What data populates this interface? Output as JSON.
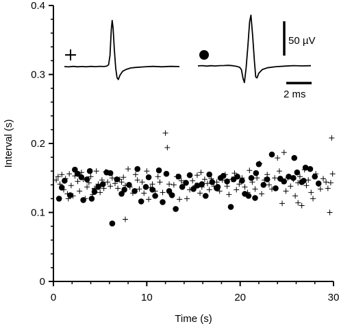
{
  "chart_data": {
    "type": "scatter",
    "xlabel": "Time (s)",
    "ylabel": "Interval (s)",
    "xlim": [
      0,
      30
    ],
    "ylim": [
      0,
      0.4
    ],
    "x_ticks": [
      0,
      10,
      20,
      30
    ],
    "x_tick_labels": [
      "0",
      "10",
      "20",
      "30"
    ],
    "y_ticks": [
      0,
      0.1,
      0.2,
      0.3,
      0.4
    ],
    "y_tick_labels": [
      "0",
      "0.1",
      "0.2",
      "0.3",
      "0.4"
    ],
    "grid": false,
    "series": [
      {
        "marker": "cross",
        "color": "#000000",
        "points": [
          [
            0.3,
            0.147
          ],
          [
            0.5,
            0.152
          ],
          [
            0.7,
            0.141
          ],
          [
            0.9,
            0.155
          ],
          [
            1.1,
            0.133
          ],
          [
            1.3,
            0.149
          ],
          [
            1.5,
            0.127
          ],
          [
            1.7,
            0.156
          ],
          [
            1.9,
            0.139
          ],
          [
            2.1,
            0.124
          ],
          [
            2.3,
            0.153
          ],
          [
            2.6,
            0.145
          ],
          [
            2.8,
            0.131
          ],
          [
            3.0,
            0.158
          ],
          [
            3.2,
            0.148
          ],
          [
            3.4,
            0.12
          ],
          [
            3.6,
            0.137
          ],
          [
            3.8,
            0.143
          ],
          [
            4.0,
            0.152
          ],
          [
            4.2,
            0.126
          ],
          [
            4.4,
            0.134
          ],
          [
            4.6,
            0.16
          ],
          [
            4.8,
            0.141
          ],
          [
            5.0,
            0.129
          ],
          [
            5.2,
            0.147
          ],
          [
            5.4,
            0.135
          ],
          [
            5.6,
            0.159
          ],
          [
            5.8,
            0.144
          ],
          [
            6.1,
            0.138
          ],
          [
            6.3,
            0.15
          ],
          [
            6.6,
            0.142
          ],
          [
            6.9,
            0.135
          ],
          [
            7.1,
            0.148
          ],
          [
            7.3,
            0.144
          ],
          [
            7.5,
            0.151
          ],
          [
            7.7,
            0.139
          ],
          [
            8.0,
            0.163
          ],
          [
            8.2,
            0.137
          ],
          [
            8.5,
            0.128
          ],
          [
            8.8,
            0.155
          ],
          [
            9.0,
            0.147
          ],
          [
            9.2,
            0.134
          ],
          [
            9.5,
            0.144
          ],
          [
            9.7,
            0.128
          ],
          [
            10.0,
            0.16
          ],
          [
            10.2,
            0.119
          ],
          [
            10.4,
            0.136
          ],
          [
            10.6,
            0.141
          ],
          [
            10.9,
            0.131
          ],
          [
            11.2,
            0.152
          ],
          [
            11.4,
            0.144
          ],
          [
            11.7,
            0.129
          ],
          [
            12.0,
            0.215
          ],
          [
            12.2,
            0.194
          ],
          [
            12.4,
            0.141
          ],
          [
            12.6,
            0.126
          ],
          [
            12.9,
            0.14
          ],
          [
            13.2,
            0.152
          ],
          [
            13.5,
            0.119
          ],
          [
            13.7,
            0.146
          ],
          [
            14.0,
            0.143
          ],
          [
            14.3,
            0.12
          ],
          [
            14.6,
            0.133
          ],
          [
            14.9,
            0.146
          ],
          [
            15.2,
            0.139
          ],
          [
            15.4,
            0.154
          ],
          [
            15.7,
            0.128
          ],
          [
            15.9,
            0.137
          ],
          [
            16.2,
            0.148
          ],
          [
            16.5,
            0.142
          ],
          [
            16.7,
            0.133
          ],
          [
            16.9,
            0.149
          ],
          [
            17.2,
            0.138
          ],
          [
            17.5,
            0.144
          ],
          [
            17.8,
            0.131
          ],
          [
            18.1,
            0.147
          ],
          [
            18.4,
            0.155
          ],
          [
            18.6,
            0.138
          ],
          [
            18.8,
            0.126
          ],
          [
            19.1,
            0.148
          ],
          [
            19.4,
            0.157
          ],
          [
            19.6,
            0.133
          ],
          [
            19.9,
            0.141
          ],
          [
            20.2,
            0.15
          ],
          [
            20.5,
            0.137
          ],
          [
            20.8,
            0.129
          ],
          [
            21.0,
            0.161
          ],
          [
            21.3,
            0.144
          ],
          [
            21.6,
            0.134
          ],
          [
            21.8,
            0.15
          ],
          [
            22.1,
            0.171
          ],
          [
            22.3,
            0.127
          ],
          [
            22.6,
            0.147
          ],
          [
            22.9,
            0.155
          ],
          [
            23.1,
            0.14
          ],
          [
            23.4,
            0.134
          ],
          [
            23.7,
            0.15
          ],
          [
            24.0,
            0.179
          ],
          [
            24.2,
            0.16
          ],
          [
            24.5,
            0.145
          ],
          [
            24.7,
            0.187
          ],
          [
            24.9,
            0.131
          ],
          [
            25.1,
            0.15
          ],
          [
            25.4,
            0.138
          ],
          [
            25.7,
            0.148
          ],
          [
            25.9,
            0.124
          ],
          [
            26.2,
            0.143
          ],
          [
            26.4,
            0.152
          ],
          [
            26.6,
            0.11
          ],
          [
            26.9,
            0.162
          ],
          [
            27.1,
            0.139
          ],
          [
            27.3,
            0.147
          ],
          [
            27.6,
            0.129
          ],
          [
            27.8,
            0.12
          ],
          [
            28.1,
            0.156
          ],
          [
            28.4,
            0.141
          ],
          [
            28.6,
            0.134
          ],
          [
            28.9,
            0.149
          ],
          [
            29.2,
            0.144
          ],
          [
            29.4,
            0.135
          ],
          [
            29.6,
            0.1
          ],
          [
            29.8,
            0.208
          ],
          [
            29.9,
            0.156
          ],
          [
            29.7,
            0.143
          ],
          [
            26.2,
            0.114
          ],
          [
            24.5,
            0.113
          ],
          [
            7.7,
            0.09
          ],
          [
            4.4,
            0.135
          ],
          [
            1.6,
            0.12
          ],
          [
            15.8,
            0.158
          ]
        ]
      },
      {
        "marker": "dot",
        "color": "#000000",
        "points": [
          [
            0.6,
            0.12
          ],
          [
            0.9,
            0.136
          ],
          [
            1.2,
            0.146
          ],
          [
            1.8,
            0.125
          ],
          [
            2.3,
            0.162
          ],
          [
            2.6,
            0.156
          ],
          [
            3.0,
            0.151
          ],
          [
            3.2,
            0.118
          ],
          [
            3.6,
            0.148
          ],
          [
            3.9,
            0.16
          ],
          [
            4.1,
            0.12
          ],
          [
            4.4,
            0.13
          ],
          [
            4.8,
            0.137
          ],
          [
            5.3,
            0.141
          ],
          [
            5.7,
            0.158
          ],
          [
            6.1,
            0.157
          ],
          [
            6.3,
            0.084
          ],
          [
            6.8,
            0.148
          ],
          [
            7.3,
            0.127
          ],
          [
            7.6,
            0.133
          ],
          [
            8.1,
            0.14
          ],
          [
            8.7,
            0.131
          ],
          [
            9.0,
            0.163
          ],
          [
            9.4,
            0.116
          ],
          [
            9.9,
            0.137
          ],
          [
            10.2,
            0.151
          ],
          [
            10.6,
            0.133
          ],
          [
            10.9,
            0.124
          ],
          [
            11.3,
            0.161
          ],
          [
            11.7,
            0.115
          ],
          [
            12.1,
            0.156
          ],
          [
            12.4,
            0.131
          ],
          [
            12.7,
            0.125
          ],
          [
            13.1,
            0.105
          ],
          [
            13.4,
            0.152
          ],
          [
            13.8,
            0.137
          ],
          [
            14.2,
            0.143
          ],
          [
            14.6,
            0.154
          ],
          [
            15.0,
            0.134
          ],
          [
            15.4,
            0.139
          ],
          [
            15.9,
            0.141
          ],
          [
            16.3,
            0.124
          ],
          [
            16.7,
            0.155
          ],
          [
            17.0,
            0.144
          ],
          [
            17.5,
            0.135
          ],
          [
            17.9,
            0.15
          ],
          [
            18.2,
            0.153
          ],
          [
            18.6,
            0.145
          ],
          [
            19.0,
            0.108
          ],
          [
            19.3,
            0.148
          ],
          [
            19.7,
            0.152
          ],
          [
            20.2,
            0.146
          ],
          [
            20.5,
            0.127
          ],
          [
            20.9,
            0.124
          ],
          [
            21.2,
            0.15
          ],
          [
            21.7,
            0.157
          ],
          [
            22.0,
            0.17
          ],
          [
            22.5,
            0.14
          ],
          [
            22.9,
            0.148
          ],
          [
            23.4,
            0.184
          ],
          [
            23.8,
            0.135
          ],
          [
            24.3,
            0.149
          ],
          [
            24.7,
            0.145
          ],
          [
            25.2,
            0.152
          ],
          [
            25.7,
            0.15
          ],
          [
            26.1,
            0.158
          ],
          [
            26.6,
            0.144
          ],
          [
            27.0,
            0.165
          ],
          [
            27.5,
            0.163
          ],
          [
            28.0,
            0.152
          ],
          [
            28.4,
            0.142
          ],
          [
            17.6,
            0.137
          ],
          [
            21.6,
            0.121
          ],
          [
            25.8,
            0.179
          ],
          [
            26.8,
            0.146
          ]
        ]
      }
    ],
    "insets": [
      {
        "marker": "cross",
        "trace": [
          [
            0,
            0
          ],
          [
            0.5,
            -0.3
          ],
          [
            1.0,
            0.2
          ],
          [
            1.5,
            -0.2
          ],
          [
            2.0,
            0.1
          ],
          [
            2.5,
            -0.2
          ],
          [
            3.0,
            0.2
          ],
          [
            3.5,
            -0.1
          ],
          [
            4.0,
            0.3
          ],
          [
            4.5,
            0.1
          ],
          [
            4.8,
            0.6
          ],
          [
            5.0,
            2.0
          ],
          [
            5.15,
            12.0
          ],
          [
            5.3,
            40.0
          ],
          [
            5.4,
            50.0
          ],
          [
            5.5,
            42.0
          ],
          [
            5.65,
            18.0
          ],
          [
            5.8,
            -2.0
          ],
          [
            5.95,
            -12.0
          ],
          [
            6.1,
            -14.0
          ],
          [
            6.3,
            -9.0
          ],
          [
            6.6,
            -5.0
          ],
          [
            7.0,
            -3.0
          ],
          [
            7.5,
            -1.5
          ],
          [
            8.0,
            -1.0
          ],
          [
            9.0,
            -0.3
          ],
          [
            10.0,
            0.2
          ],
          [
            11.0,
            -0.2
          ],
          [
            12.0,
            0.2
          ],
          [
            13.0,
            0.0
          ]
        ]
      },
      {
        "marker": "dot",
        "trace": [
          [
            0,
            0
          ],
          [
            0.5,
            0.3
          ],
          [
            1.0,
            -0.2
          ],
          [
            1.5,
            0.2
          ],
          [
            2.0,
            -0.1
          ],
          [
            2.5,
            0.3
          ],
          [
            3.0,
            0.4
          ],
          [
            3.5,
            0.6
          ],
          [
            4.0,
            0.2
          ],
          [
            4.5,
            -0.6
          ],
          [
            4.8,
            -1.5
          ],
          [
            5.0,
            -4.0
          ],
          [
            5.2,
            -14.0
          ],
          [
            5.35,
            -18.0
          ],
          [
            5.55,
            -2.0
          ],
          [
            5.75,
            22.0
          ],
          [
            5.95,
            48.0
          ],
          [
            6.1,
            55.0
          ],
          [
            6.3,
            32.0
          ],
          [
            6.5,
            5.0
          ],
          [
            6.65,
            -12.0
          ],
          [
            6.8,
            -13.0
          ],
          [
            7.0,
            -8.0
          ],
          [
            7.4,
            -4.0
          ],
          [
            8.0,
            -2.0
          ],
          [
            9.0,
            -0.8
          ],
          [
            10.0,
            -0.2
          ],
          [
            11.0,
            0.3
          ],
          [
            12.0,
            0.0
          ],
          [
            13.0,
            0.2
          ]
        ]
      }
    ],
    "scale_bar_voltage_label": "50 µV",
    "scale_bar_time_label": "2 ms"
  }
}
